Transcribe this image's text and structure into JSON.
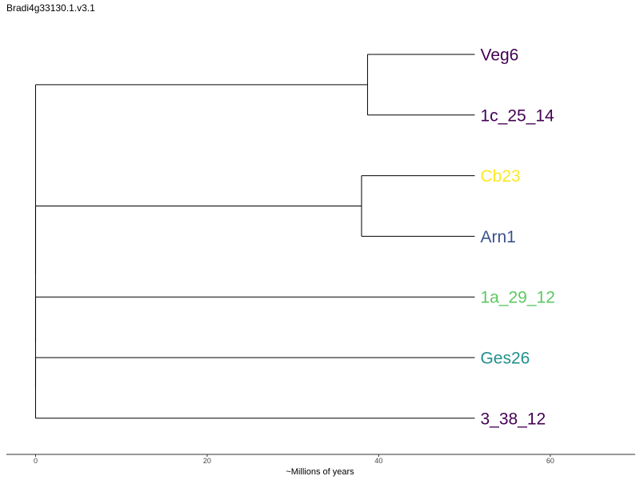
{
  "title": "Bradi4g33130.1.v3.1",
  "chart_data": {
    "type": "dendrogram",
    "xlabel": "~Millions of years",
    "xlim": [
      -3.4,
      69.9
    ],
    "xticks": [
      0,
      20,
      40,
      60
    ],
    "grid": false,
    "tips": [
      {
        "label": "Veg6",
        "color": "#440154",
        "depth": 51.2
      },
      {
        "label": "1c_25_14",
        "color": "#440154",
        "depth": 51.2
      },
      {
        "label": "Cb23",
        "color": "#FDE725",
        "depth": 51.2
      },
      {
        "label": "Arn1",
        "color": "#3B528B",
        "depth": 51.2
      },
      {
        "label": "1a_29_12",
        "color": "#5DC863",
        "depth": 51.2
      },
      {
        "label": "Ges26",
        "color": "#21908C",
        "depth": 51.2
      },
      {
        "label": "3_38_12",
        "color": "#440154",
        "depth": 51.2
      }
    ],
    "tree": {
      "depth": 0,
      "children": [
        {
          "depth": 38.7,
          "children": [
            {
              "tip": 0
            },
            {
              "tip": 1
            }
          ]
        },
        {
          "depth": 0,
          "children": [
            {
              "depth": 38.0,
              "children": [
                {
                  "tip": 2
                },
                {
                  "tip": 3
                }
              ]
            },
            {
              "depth": 0,
              "children": [
                {
                  "tip": 4
                },
                {
                  "depth": 0,
                  "children": [
                    {
                      "tip": 5
                    },
                    {
                      "tip": 6
                    }
                  ]
                }
              ]
            }
          ]
        }
      ]
    }
  }
}
